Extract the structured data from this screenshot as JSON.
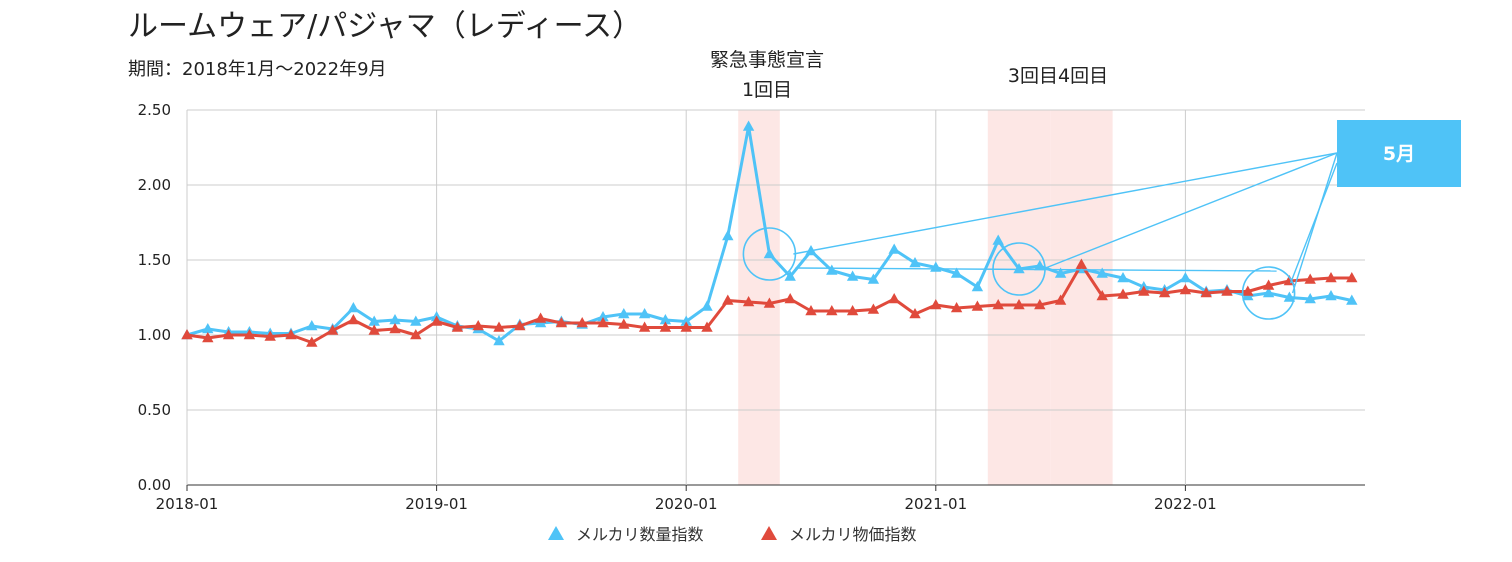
{
  "chart_data": {
    "type": "line",
    "title": "ルームウェア/パジャマ（レディース）",
    "subtitle": "期間：2018年1月〜2022年9月",
    "ylim": [
      0,
      2.5
    ],
    "yticks": [
      "0.00",
      "0.50",
      "1.00",
      "1.50",
      "2.00",
      "2.50"
    ],
    "xticks": [
      "2018-01",
      "2019-01",
      "2020-01",
      "2021-01",
      "2022-01"
    ],
    "x_start": "2018-01",
    "grid": true,
    "legend_position": "bottom",
    "series": [
      {
        "name": "メルカリ数量指数",
        "color": "#4fc3f7",
        "values": [
          1.0,
          1.04,
          1.02,
          1.02,
          1.01,
          1.01,
          1.06,
          1.04,
          1.18,
          1.09,
          1.1,
          1.09,
          1.12,
          1.06,
          1.04,
          0.96,
          1.07,
          1.08,
          1.09,
          1.07,
          1.12,
          1.14,
          1.14,
          1.1,
          1.09,
          1.19,
          1.66,
          2.39,
          1.54,
          1.39,
          1.56,
          1.43,
          1.39,
          1.37,
          1.57,
          1.48,
          1.45,
          1.41,
          1.32,
          1.63,
          1.44,
          1.46,
          1.41,
          1.44,
          1.41,
          1.38,
          1.32,
          1.3,
          1.38,
          1.29,
          1.3,
          1.26,
          1.28,
          1.25,
          1.24,
          1.26,
          1.23
        ]
      },
      {
        "name": "メルカリ物価指数",
        "color": "#e04a3c",
        "values": [
          1.0,
          0.98,
          1.0,
          1.0,
          0.99,
          1.0,
          0.95,
          1.03,
          1.1,
          1.03,
          1.04,
          1.0,
          1.09,
          1.05,
          1.06,
          1.05,
          1.06,
          1.11,
          1.08,
          1.08,
          1.08,
          1.07,
          1.05,
          1.05,
          1.05,
          1.05,
          1.23,
          1.22,
          1.21,
          1.24,
          1.16,
          1.16,
          1.16,
          1.17,
          1.24,
          1.14,
          1.2,
          1.18,
          1.19,
          1.2,
          1.2,
          1.2,
          1.23,
          1.47,
          1.26,
          1.27,
          1.29,
          1.28,
          1.3,
          1.28,
          1.29,
          1.29,
          1.33,
          1.36,
          1.37,
          1.38,
          1.38
        ]
      }
    ],
    "shaded_periods": [
      {
        "from": "2020-04",
        "to": "2020-05"
      },
      {
        "from": "2021-04",
        "to": "2021-06"
      },
      {
        "from": "2021-07",
        "to": "2021-09"
      }
    ],
    "annotations": [
      {
        "lines": [
          "緊急事態宣言",
          "1回目"
        ]
      },
      {
        "lines": [
          "3回目4回目"
        ]
      }
    ],
    "callout": {
      "label": "5月",
      "color": "#4fc3f7"
    },
    "highlight_months": [
      "2020-05",
      "2021-05",
      "2022-05"
    ]
  }
}
